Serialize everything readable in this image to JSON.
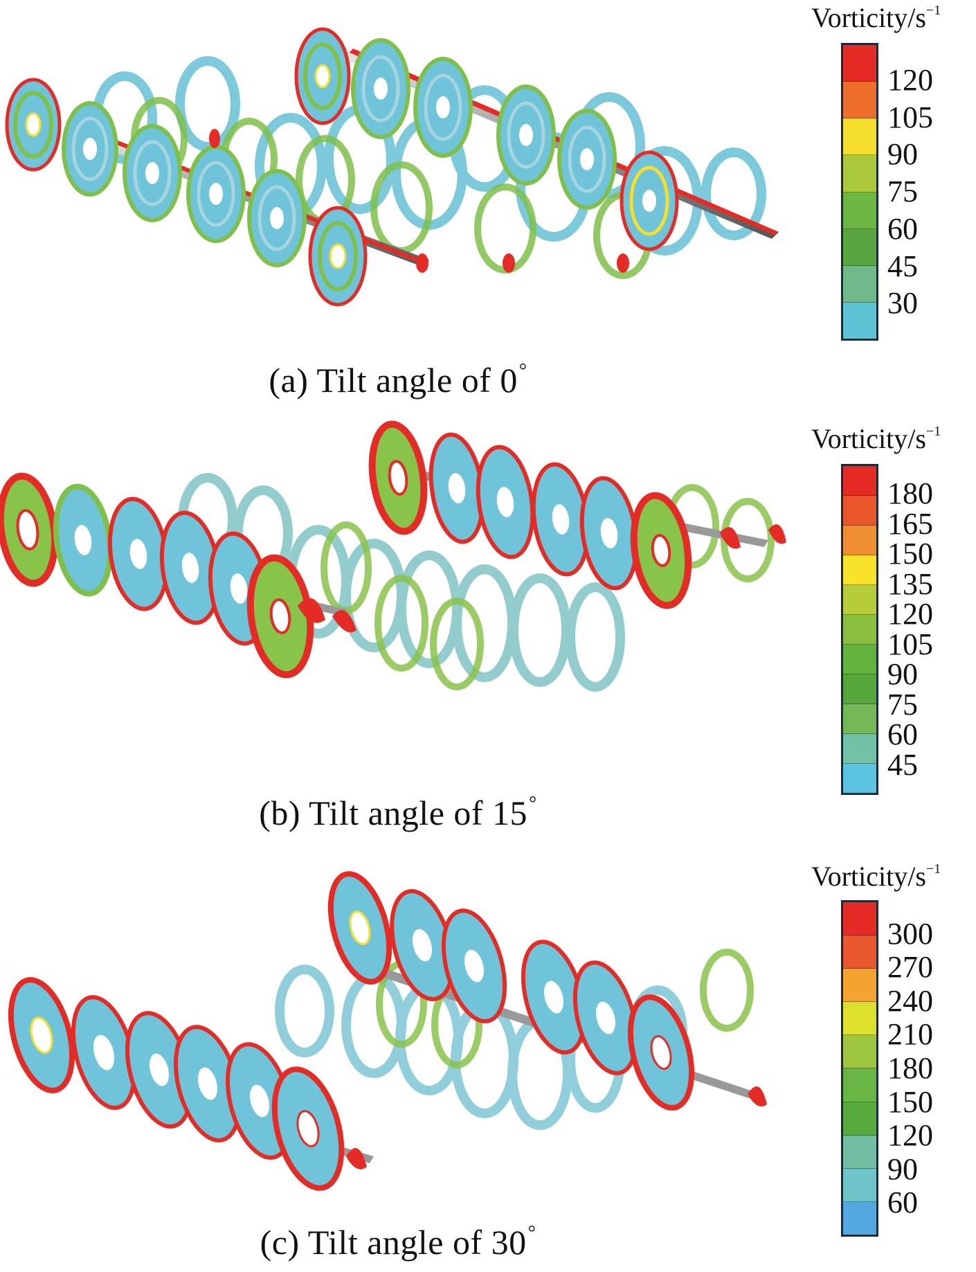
{
  "legend_title": "Vorticity/s",
  "legend_title_sup": "−1",
  "degree_symbol": "°",
  "panels": [
    {
      "caption": "(a) Tilt angle of 0",
      "ticks": [
        "120",
        "105",
        "90",
        "75",
        "60",
        "45",
        "30"
      ],
      "colors": [
        "#e52b26",
        "#ee6f2c",
        "#f6de2c",
        "#acc83c",
        "#6db843",
        "#58a63d",
        "#6fb98a",
        "#5fc3d6"
      ]
    },
    {
      "caption": "(b) Tilt angle of 15",
      "ticks": [
        "180",
        "165",
        "150",
        "135",
        "120",
        "105",
        "90",
        "75",
        "60",
        "45"
      ],
      "colors": [
        "#e52b26",
        "#e9562a",
        "#f28e32",
        "#f8e22c",
        "#b6cc3a",
        "#89c03f",
        "#64b33f",
        "#56a63c",
        "#76b857",
        "#72c2a6",
        "#5cc4e0"
      ]
    },
    {
      "caption": "(c) Tilt angle of 30",
      "ticks": [
        "300",
        "270",
        "240",
        "210",
        "180",
        "150",
        "120",
        "90",
        "60"
      ],
      "colors": [
        "#e52b26",
        "#e9582c",
        "#f4a32e",
        "#dde02c",
        "#9dc63e",
        "#69b543",
        "#5aa93d",
        "#73bea0",
        "#6fc4c7",
        "#53a8e0"
      ]
    }
  ]
}
